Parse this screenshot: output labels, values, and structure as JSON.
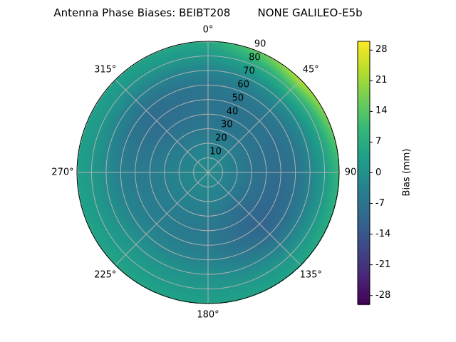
{
  "chart_data": {
    "type": "heatmap",
    "projection": "polar",
    "title": "Antenna Phase Biases: BEIBT208        NONE GALILEO-E5b",
    "colorbar_label": "Bias (mm)",
    "colormap": "viridis",
    "clim": [
      -30,
      30
    ],
    "colorbar_ticks": [
      -28,
      -21,
      -14,
      -7,
      0,
      7,
      14,
      21,
      28
    ],
    "angle_ticks": [
      "0°",
      "45°",
      "90",
      "135°",
      "180°",
      "225°",
      "270°",
      "315°"
    ],
    "radial_ticks": [
      "10",
      "20",
      "30",
      "40",
      "50",
      "60",
      "70",
      "80",
      "90"
    ],
    "rlim": [
      0,
      90
    ],
    "theta_zero": "top",
    "theta_direction": "clockwise",
    "grid": true,
    "zenith": [
      0,
      10,
      20,
      30,
      40,
      50,
      60,
      70,
      80,
      90
    ],
    "azimuth": [
      0,
      45,
      90,
      135,
      180,
      225,
      270,
      315
    ],
    "values": [
      [
        -1,
        -2,
        -4,
        -6,
        -7,
        -7,
        -6,
        -3,
        2,
        6
      ],
      [
        -1,
        -2,
        -4,
        -6,
        -7,
        -7,
        -5,
        0,
        9,
        24
      ],
      [
        -1,
        -3,
        -5,
        -7,
        -8,
        -9,
        -7,
        -3,
        3,
        10
      ],
      [
        -1,
        -3,
        -5,
        -8,
        -10,
        -11,
        -9,
        -4,
        2,
        5
      ],
      [
        -1,
        -2,
        -3,
        -5,
        -6,
        -5,
        -3,
        0,
        2,
        4
      ],
      [
        -1,
        -2,
        -3,
        -4,
        -5,
        -4,
        -2,
        1,
        3,
        5
      ],
      [
        -1,
        -2,
        -3,
        -4,
        -5,
        -5,
        -4,
        -1,
        2,
        4
      ],
      [
        -1,
        -2,
        -4,
        -6,
        -8,
        -9,
        -8,
        -4,
        1,
        4
      ]
    ]
  }
}
